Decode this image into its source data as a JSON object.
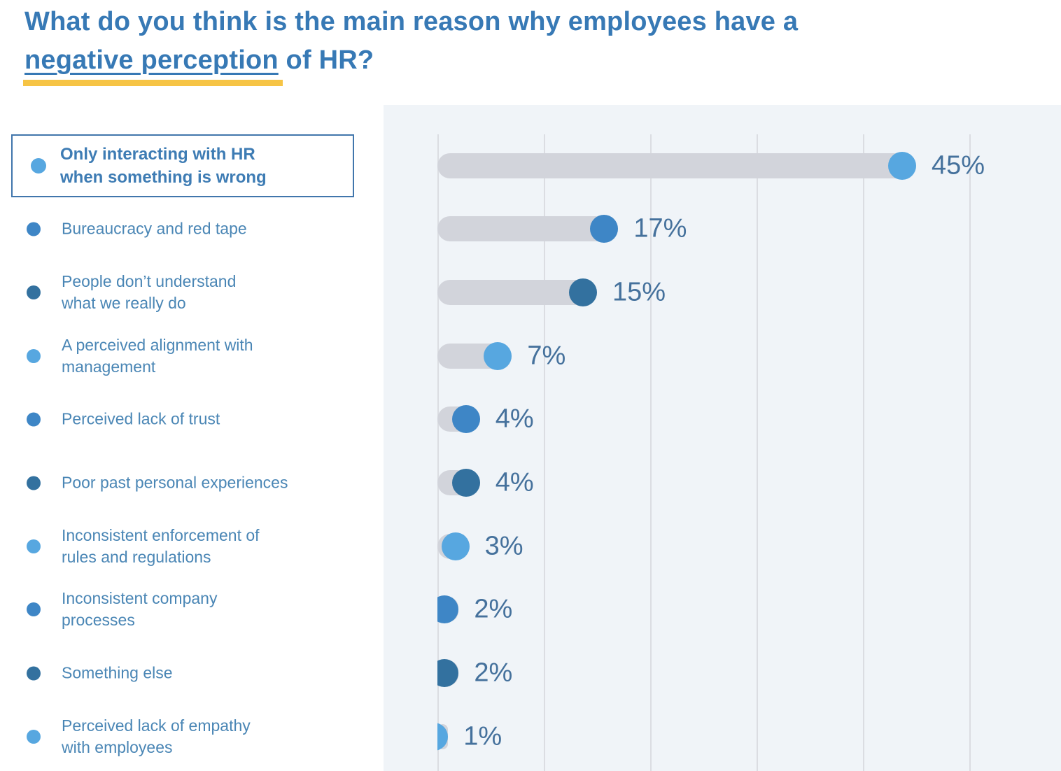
{
  "title": {
    "line1": "What do you think is the main reason why employees have a",
    "line2_highlight": "negative perception",
    "line2_rest": " of HR?"
  },
  "chart_data": {
    "type": "bar",
    "orientation": "horizontal",
    "title": "What do you think is the main reason why employees have a negative perception of HR?",
    "unit": "percent",
    "xlim": [
      0,
      50
    ],
    "gridline_step_percent": 10,
    "grid": true,
    "legend_position": "left",
    "series": [
      {
        "category": "Only interacting with HR when something is wrong",
        "category_display": "Only interacting with HR\nwhen something is wrong",
        "value": 45,
        "value_label": "45%",
        "shade": "light",
        "highlighted": true
      },
      {
        "category": "Bureaucracy and red tape",
        "category_display": "Bureaucracy and red tape",
        "value": 17,
        "value_label": "17%",
        "shade": "medium",
        "highlighted": false
      },
      {
        "category": "People don’t understand what we really do",
        "category_display": "People don’t understand\nwhat we really do",
        "value": 15,
        "value_label": "15%",
        "shade": "dark",
        "highlighted": false
      },
      {
        "category": "A perceived alignment with management",
        "category_display": "A perceived alignment with\nmanagement",
        "value": 7,
        "value_label": "7%",
        "shade": "light",
        "highlighted": false
      },
      {
        "category": "Perceived lack of trust",
        "category_display": "Perceived lack of trust",
        "value": 4,
        "value_label": "4%",
        "shade": "medium",
        "highlighted": false
      },
      {
        "category": "Poor past personal experiences",
        "category_display": "Poor past personal experiences",
        "value": 4,
        "value_label": "4%",
        "shade": "dark",
        "highlighted": false
      },
      {
        "category": "Inconsistent enforcement of rules and regulations",
        "category_display": "Inconsistent enforcement of\nrules and regulations",
        "value": 3,
        "value_label": "3%",
        "shade": "light",
        "highlighted": false
      },
      {
        "category": "Inconsistent company processes",
        "category_display": "Inconsistent company\nprocesses",
        "value": 2,
        "value_label": "2%",
        "shade": "medium",
        "highlighted": false
      },
      {
        "category": "Something else",
        "category_display": "Something else",
        "value": 2,
        "value_label": "2%",
        "shade": "dark",
        "highlighted": false
      },
      {
        "category": "Perceived lack of empathy with employees",
        "category_display": "Perceived lack of empathy\nwith employees",
        "value": 1,
        "value_label": "1%",
        "shade": "light",
        "highlighted": false
      }
    ]
  },
  "colors": {
    "title_text": "#3779B5",
    "legend_text": "#4A86B5",
    "box_text": "#3E7CB4",
    "value_text": "#45719C",
    "bar_track": "#D2D4DB",
    "gridline": "#DBDDE2",
    "panel_bg": "#F0F4F8",
    "highlight_underline": "#F6C445",
    "box_border": "#4176AC",
    "dot_light": "#57A7E0",
    "dot_medium": "#3E86C6",
    "dot_dark": "#33719F"
  }
}
